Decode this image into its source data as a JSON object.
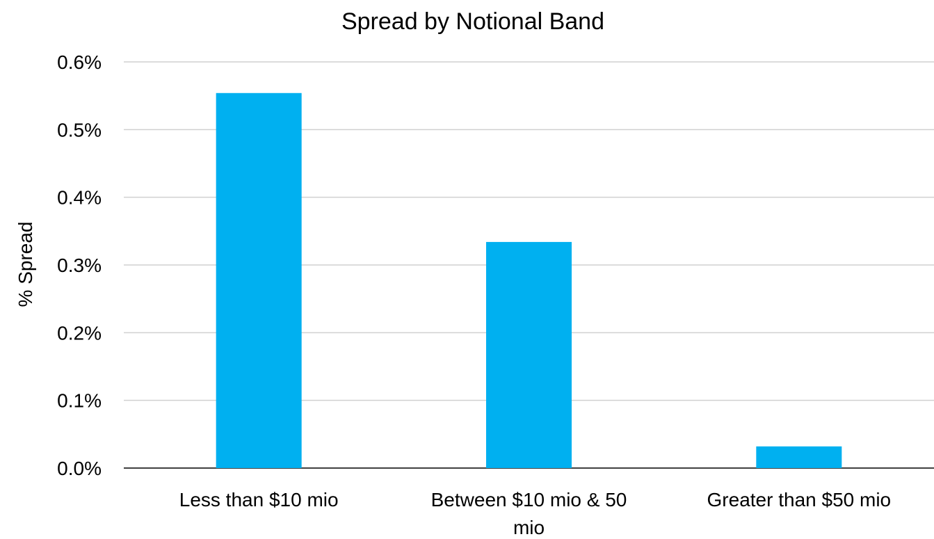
{
  "chart_data": {
    "type": "bar",
    "title": "Spread by Notional Band",
    "xlabel": "",
    "ylabel": "% Spread",
    "categories": [
      [
        "Less than $10 mio"
      ],
      [
        "Between $10 mio & 50",
        "mio"
      ],
      [
        "Greater than $50 mio"
      ]
    ],
    "values": [
      0.554,
      0.334,
      0.032
    ],
    "ylim": [
      0.0,
      0.6
    ],
    "yticks": [
      0.0,
      0.1,
      0.2,
      0.3,
      0.4,
      0.5,
      0.6
    ],
    "ytick_labels": [
      "0.0%",
      "0.1%",
      "0.2%",
      "0.3%",
      "0.4%",
      "0.5%",
      "0.6%"
    ],
    "grid": true,
    "legend": "none",
    "bar_color": "#00b0f0"
  }
}
